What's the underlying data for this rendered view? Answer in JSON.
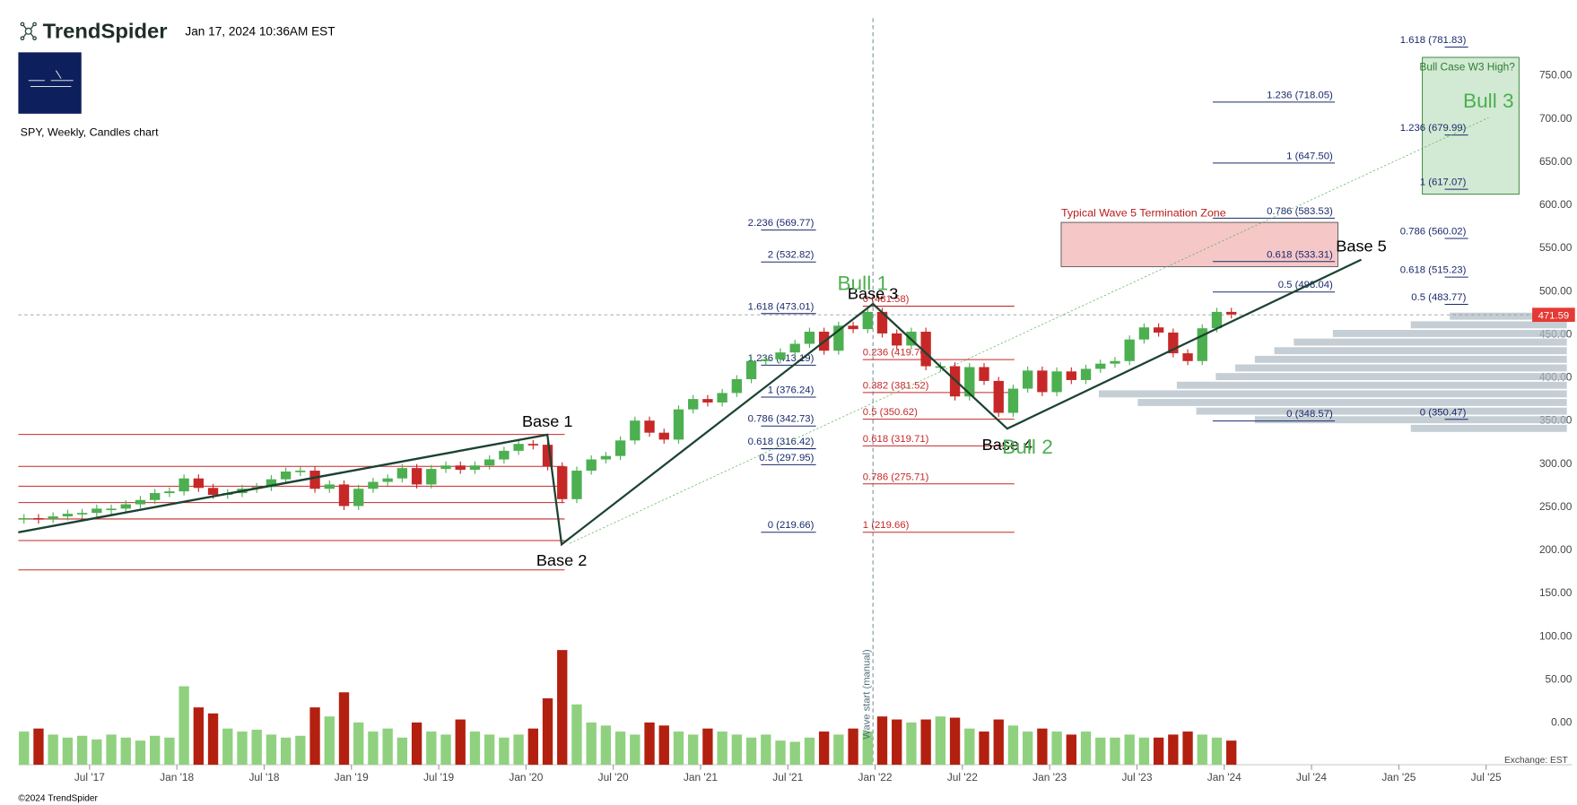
{
  "chart_data": {
    "type": "candlestick",
    "brand": "TrendSpider",
    "timestamp": "Jan 17, 2024 10:36AM EST",
    "subtitle": "SPY, Weekly, Candles chart",
    "copyright": "©2024 TrendSpider",
    "exchange": "Exchange: EST",
    "vertical_note": "Wave start (manual)",
    "x": [
      1,
      2,
      3,
      4,
      5,
      6,
      7,
      8,
      9,
      10,
      11,
      12,
      13,
      14,
      15,
      16,
      17,
      18,
      19,
      20,
      21,
      22,
      23,
      24,
      25,
      26,
      27,
      28,
      29,
      30,
      31,
      32,
      33,
      34,
      35,
      36,
      37,
      38,
      39,
      40,
      41,
      42,
      43,
      44,
      45,
      46,
      47,
      48,
      49,
      50,
      51,
      52,
      53,
      54,
      55,
      56,
      57,
      58,
      59,
      60,
      61,
      62,
      63,
      64,
      65,
      66,
      67,
      68,
      69,
      70,
      71,
      72,
      73,
      74,
      75,
      76,
      77,
      78,
      79,
      80,
      81,
      82,
      83,
      84
    ],
    "values": [
      236,
      235,
      238,
      241,
      242,
      247,
      247,
      252,
      257,
      265,
      267,
      282,
      271,
      263,
      265,
      270,
      272,
      281,
      290,
      291,
      270,
      275,
      250,
      270,
      278,
      282,
      294,
      275,
      293,
      297,
      292,
      297,
      304,
      314,
      322,
      321,
      296,
      258,
      291,
      304,
      308,
      326,
      349,
      335,
      327,
      362,
      374,
      370,
      381,
      397,
      418,
      420,
      428,
      438,
      452,
      430,
      459,
      455,
      475,
      450,
      436,
      452,
      412,
      412,
      377,
      411,
      395,
      358,
      386,
      407,
      382,
      406,
      396,
      409,
      415,
      418,
      443,
      457,
      451,
      427,
      418,
      456,
      475,
      472
    ],
    "volume": [
      55,
      60,
      50,
      45,
      48,
      42,
      50,
      45,
      40,
      48,
      45,
      130,
      95,
      85,
      60,
      55,
      58,
      50,
      45,
      48,
      95,
      80,
      120,
      70,
      55,
      60,
      45,
      70,
      55,
      50,
      75,
      55,
      50,
      45,
      50,
      60,
      110,
      190,
      100,
      70,
      65,
      55,
      50,
      70,
      65,
      55,
      50,
      60,
      55,
      50,
      45,
      50,
      40,
      38,
      45,
      55,
      50,
      60,
      55,
      80,
      75,
      70,
      75,
      80,
      78,
      60,
      55,
      75,
      65,
      55,
      60,
      55,
      50,
      55,
      45,
      45,
      50,
      45,
      45,
      50,
      55,
      50,
      45,
      40
    ],
    "volume_ylim": [
      0,
      200
    ],
    "up_color": "#4caf50",
    "down_color": "#c62828",
    "vol_up_color": "#8fd17f",
    "vol_down_color": "#b3200f",
    "xlim": [
      1.1,
      107.9
    ],
    "xticks": [
      {
        "value": 6,
        "label": "Jul '17"
      },
      {
        "value": 12,
        "label": "Jan '18"
      },
      {
        "value": 18,
        "label": "Jul '18"
      },
      {
        "value": 24,
        "label": "Jan '19"
      },
      {
        "value": 30,
        "label": "Jul '19"
      },
      {
        "value": 36,
        "label": "Jan '20"
      },
      {
        "value": 42,
        "label": "Jul '20"
      },
      {
        "value": 48,
        "label": "Jan '21"
      },
      {
        "value": 54,
        "label": "Jul '21"
      },
      {
        "value": 60,
        "label": "Jan '22"
      },
      {
        "value": 66,
        "label": "Jul '22"
      },
      {
        "value": 72,
        "label": "Jan '23"
      },
      {
        "value": 78,
        "label": "Jul '23"
      },
      {
        "value": 84,
        "label": "Jan '24"
      },
      {
        "value": 90,
        "label": "Jul '24"
      },
      {
        "value": 96,
        "label": "Jan '25"
      },
      {
        "value": 102,
        "label": "Jul '25"
      }
    ],
    "ylim": [
      -49.8,
      836.4
    ],
    "yticks": [
      {
        "value": 0,
        "label": "0.00"
      },
      {
        "value": 50,
        "label": "50.00"
      },
      {
        "value": 100,
        "label": "100.00"
      },
      {
        "value": 150,
        "label": "150.00"
      },
      {
        "value": 200,
        "label": "200.00"
      },
      {
        "value": 250,
        "label": "250.00"
      },
      {
        "value": 300,
        "label": "300.00"
      },
      {
        "value": 350,
        "label": "350.00"
      },
      {
        "value": 400,
        "label": "400.00"
      },
      {
        "value": 450,
        "label": "450.00"
      },
      {
        "value": 500,
        "label": "500.00"
      },
      {
        "value": 550,
        "label": "550.00"
      },
      {
        "value": 600,
        "label": "600.00"
      },
      {
        "value": 650,
        "label": "650.00"
      },
      {
        "value": 700,
        "label": "700.00"
      },
      {
        "value": 750,
        "label": "750.00"
      }
    ],
    "last_price": 471.59,
    "fib_sets": [
      {
        "color": "#1a2a6c",
        "levels": [
          {
            "label": "2.236 (569.77)",
            "price": 569.77
          },
          {
            "label": "2 (532.82)",
            "price": 532.82
          },
          {
            "label": "1.618 (473.01)",
            "price": 473.01
          },
          {
            "label": "1.236 (413.19)",
            "price": 413.19
          },
          {
            "label": "1 (376.24)",
            "price": 376.24
          },
          {
            "label": "0.786 (342.73)",
            "price": 342.73
          },
          {
            "label": "0.618 (316.42)",
            "price": 316.42
          },
          {
            "label": "0.5 (297.95)",
            "price": 297.95
          },
          {
            "label": "0 (219.66)",
            "price": 219.66
          }
        ]
      },
      {
        "color": "#c62828",
        "levels": [
          {
            "label": "0 (481.58)",
            "price": 481.58
          },
          {
            "label": "0.236 (419.76)",
            "price": 419.76
          },
          {
            "label": "0.382 (381.52)",
            "price": 381.52
          },
          {
            "label": "0.5 (350.62)",
            "price": 350.62
          },
          {
            "label": "0.618 (319.71)",
            "price": 319.71
          },
          {
            "label": "0.786 (275.71)",
            "price": 275.71
          },
          {
            "label": "1 (219.66)",
            "price": 219.66
          }
        ]
      },
      {
        "color": "#1a2a6c",
        "levels": [
          {
            "label": "1.236 (718.05)",
            "price": 718.05
          },
          {
            "label": "1 (647.50)",
            "price": 647.5
          },
          {
            "label": "0.786 (583.53)",
            "price": 583.53
          },
          {
            "label": "0.618 (533.31)",
            "price": 533.31
          },
          {
            "label": "0.5 (498.04)",
            "price": 498.04
          },
          {
            "label": "0 (348.57)",
            "price": 348.57
          }
        ]
      },
      {
        "color": "#1a2a6c",
        "levels": [
          {
            "label": "1.618 (781.83)",
            "price": 781.83
          },
          {
            "label": "1.236 (679.99)",
            "price": 679.99
          },
          {
            "label": "1 (617.07)",
            "price": 617.07
          },
          {
            "label": "0.786 (560.02)",
            "price": 560.02
          },
          {
            "label": "0.618 (515.23)",
            "price": 515.23
          },
          {
            "label": "0.5 (483.77)",
            "price": 483.77
          },
          {
            "label": "0 (350.47)",
            "price": 350.47
          }
        ]
      }
    ],
    "support_lines": [
      333,
      296,
      273,
      254,
      235,
      210,
      176
    ],
    "support_color": "#c62828",
    "annotations": [
      {
        "text": "Base 1",
        "color": "#000000"
      },
      {
        "text": "Base 2",
        "color": "#000000"
      },
      {
        "text": "Base 3",
        "color": "#000000"
      },
      {
        "text": "Base 4",
        "color": "#000000"
      },
      {
        "text": "Base 5",
        "color": "#000000"
      },
      {
        "text": "Bull 1",
        "color": "#4caf50"
      },
      {
        "text": "Bull 2",
        "color": "#4caf50"
      },
      {
        "text": "Bull 3",
        "color": "#4caf50"
      },
      {
        "text": "Typical Wave 5 Termination Zone",
        "color": "#b71c1c"
      },
      {
        "text": "Bull Case W3 High?",
        "color": "#2e7d32"
      }
    ],
    "volume_profile": {
      "prices": [
        340,
        350,
        360,
        370,
        380,
        390,
        400,
        410,
        420,
        430,
        440,
        450,
        460,
        470
      ],
      "values": [
        40,
        80,
        95,
        110,
        120,
        100,
        90,
        85,
        80,
        75,
        70,
        60,
        40,
        30
      ],
      "color": "#b0bec5"
    }
  }
}
